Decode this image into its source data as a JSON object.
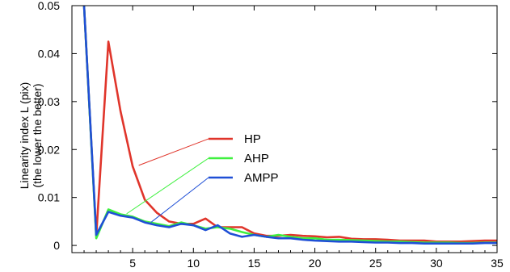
{
  "chart_data": {
    "type": "line",
    "ylabel_line1": "Linearity index L (pix)",
    "ylabel_line2": "(the lower the better)",
    "xlim": [
      0,
      35
    ],
    "ylim": [
      -0.0015,
      0.05
    ],
    "xticks": [
      5,
      10,
      15,
      20,
      25,
      30,
      35
    ],
    "yticks": [
      0,
      0.01,
      0.02,
      0.03,
      0.04,
      0.05
    ],
    "ytick_labels": [
      "0",
      "0.01",
      "0.02",
      "0.03",
      "0.04",
      "0.05"
    ],
    "grid": false,
    "legend_position": "right-center",
    "series": [
      {
        "name": "HP",
        "color": "#e0352b",
        "x": [
          1,
          2,
          3,
          4,
          5,
          6,
          7,
          8,
          9,
          10,
          11,
          12,
          13,
          14,
          15,
          16,
          17,
          18,
          19,
          20,
          21,
          22,
          23,
          24,
          25,
          26,
          27,
          28,
          29,
          30,
          31,
          32,
          33,
          34,
          35
        ],
        "y": [
          0.05,
          0.002,
          0.0425,
          0.028,
          0.0165,
          0.0095,
          0.0068,
          0.005,
          0.0045,
          0.0045,
          0.0056,
          0.0038,
          0.0038,
          0.0038,
          0.0025,
          0.002,
          0.002,
          0.0022,
          0.002,
          0.0019,
          0.0017,
          0.0018,
          0.0014,
          0.0013,
          0.0013,
          0.0012,
          0.001,
          0.001,
          0.001,
          0.0008,
          0.0008,
          0.0008,
          0.0009,
          0.001,
          0.001
        ]
      },
      {
        "name": "AHP",
        "color": "#3ff03f",
        "x": [
          1,
          2,
          3,
          4,
          5,
          6,
          7,
          8,
          9,
          10,
          11,
          12,
          13,
          14,
          15,
          16,
          17,
          18,
          19,
          20,
          21,
          22,
          23,
          24,
          25,
          26,
          27,
          28,
          29,
          30,
          31,
          32,
          33,
          34,
          35
        ],
        "y": [
          0.05,
          0.0015,
          0.0075,
          0.0065,
          0.006,
          0.005,
          0.0045,
          0.004,
          0.0048,
          0.0042,
          0.0035,
          0.0038,
          0.0035,
          0.0028,
          0.0022,
          0.0018,
          0.0022,
          0.0018,
          0.0015,
          0.0015,
          0.0012,
          0.0012,
          0.0011,
          0.001,
          0.0009,
          0.0008,
          0.0008,
          0.0007,
          0.0006,
          0.0006,
          0.0006,
          0.0005,
          0.0005,
          0.0006,
          0.0006
        ]
      },
      {
        "name": "AMPP",
        "color": "#1f4fd6",
        "x": [
          1,
          2,
          3,
          4,
          5,
          6,
          7,
          8,
          9,
          10,
          11,
          12,
          13,
          14,
          15,
          16,
          17,
          18,
          19,
          20,
          21,
          22,
          23,
          24,
          25,
          26,
          27,
          28,
          29,
          30,
          31,
          32,
          33,
          34,
          35
        ],
        "y": [
          0.05,
          0.0022,
          0.007,
          0.0062,
          0.0058,
          0.0048,
          0.0042,
          0.0038,
          0.0045,
          0.0042,
          0.0032,
          0.0042,
          0.0025,
          0.0018,
          0.0022,
          0.0018,
          0.0015,
          0.0015,
          0.0012,
          0.001,
          0.0009,
          0.0008,
          0.0008,
          0.0007,
          0.0006,
          0.0006,
          0.0005,
          0.0005,
          0.0004,
          0.0004,
          0.0004,
          0.0004,
          0.0004,
          0.0005,
          0.0005
        ]
      }
    ]
  }
}
